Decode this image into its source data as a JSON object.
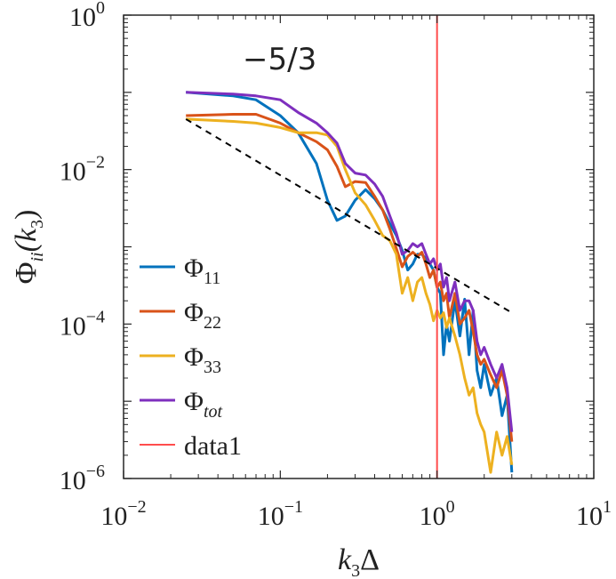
{
  "chart_data": {
    "type": "line",
    "title": "",
    "xscale": "log",
    "yscale": "log",
    "xlim": [
      0.01,
      10
    ],
    "ylim": [
      1e-06,
      1
    ],
    "xlabel": {
      "main": "k",
      "sub": "3",
      "tail": "Δ"
    },
    "ylabel": {
      "main": "Φ",
      "sub": "ii",
      "tail": "(k",
      "sub2": "3",
      "close": ")"
    },
    "x_ticks": [
      {
        "value": 0.01,
        "base": "10",
        "exp": "−2"
      },
      {
        "value": 0.1,
        "base": "10",
        "exp": "−1"
      },
      {
        "value": 1,
        "base": "10",
        "exp": "0"
      },
      {
        "value": 10,
        "base": "10",
        "exp": "1"
      }
    ],
    "y_ticks": [
      {
        "value": 1e-06,
        "base": "10",
        "exp": "−6"
      },
      {
        "value": 0.0001,
        "base": "10",
        "exp": "−4"
      },
      {
        "value": 0.01,
        "base": "10",
        "exp": "−2"
      },
      {
        "value": 1,
        "base": "10",
        "exp": "0"
      }
    ],
    "annotation": {
      "text": "−5/3"
    },
    "reference_line": {
      "name": "-5/3 slope",
      "x": [
        0.025,
        3.0
      ],
      "y": [
        0.045,
        0.00014
      ],
      "color": "#000000"
    },
    "vertical_line": {
      "name": "data1",
      "x": 1,
      "color": "#ff4d4d"
    },
    "legend": {
      "location": "lower-left"
    },
    "series": [
      {
        "name": "11",
        "legend_main": "Φ",
        "legend_sub": "11",
        "color": "#0072bd",
        "x": [
          0.025,
          0.05,
          0.07,
          0.1,
          0.13,
          0.17,
          0.2,
          0.23,
          0.26,
          0.3,
          0.35,
          0.4,
          0.45,
          0.5,
          0.55,
          0.6,
          0.65,
          0.7,
          0.75,
          0.8,
          0.85,
          0.9,
          0.95,
          1.0,
          1.05,
          1.1,
          1.15,
          1.2,
          1.3,
          1.4,
          1.5,
          1.6,
          1.7,
          1.8,
          1.9,
          2.0,
          2.2,
          2.4,
          2.6,
          2.8,
          3.0
        ],
        "y": [
          0.1,
          0.09,
          0.08,
          0.05,
          0.03,
          0.012,
          0.004,
          0.0022,
          0.0025,
          0.004,
          0.0055,
          0.0042,
          0.003,
          0.002,
          0.0014,
          0.0009,
          0.0005,
          0.0006,
          0.0008,
          0.0008,
          0.0007,
          0.0006,
          0.0005,
          0.0003,
          0.00025,
          4e-05,
          0.0001,
          6e-05,
          0.0002,
          7e-05,
          0.00021,
          4e-05,
          0.00015,
          2.5e-05,
          1.5e-05,
          3e-05,
          1.2e-05,
          2e-05,
          6.5e-06,
          1.2e-05,
          1.2e-06
        ]
      },
      {
        "name": "22",
        "legend_main": "Φ",
        "legend_sub": "22",
        "color": "#d95319",
        "x": [
          0.025,
          0.05,
          0.07,
          0.1,
          0.13,
          0.17,
          0.2,
          0.23,
          0.26,
          0.3,
          0.35,
          0.4,
          0.45,
          0.5,
          0.55,
          0.6,
          0.65,
          0.7,
          0.75,
          0.8,
          0.85,
          0.9,
          0.95,
          1.0,
          1.05,
          1.1,
          1.15,
          1.2,
          1.3,
          1.4,
          1.5,
          1.6,
          1.7,
          1.8,
          1.9,
          2.0,
          2.2,
          2.4,
          2.6,
          2.8,
          3.0
        ],
        "y": [
          0.05,
          0.052,
          0.052,
          0.04,
          0.03,
          0.023,
          0.018,
          0.011,
          0.006,
          0.007,
          0.0068,
          0.0045,
          0.003,
          0.0017,
          0.00095,
          0.00055,
          0.00075,
          0.00085,
          0.00075,
          0.00085,
          0.0006,
          0.0004,
          0.0005,
          0.0003,
          0.00035,
          0.0002,
          0.00025,
          0.00012,
          0.00025,
          0.0001,
          0.00012,
          0.00015,
          8e-05,
          4e-05,
          3e-05,
          3.5e-05,
          2.2e-05,
          1.5e-05,
          2.5e-05,
          1.2e-05,
          3e-06
        ]
      },
      {
        "name": "33",
        "legend_main": "Φ",
        "legend_sub": "33",
        "color": "#edb120",
        "x": [
          0.025,
          0.05,
          0.07,
          0.1,
          0.13,
          0.17,
          0.2,
          0.23,
          0.26,
          0.3,
          0.35,
          0.4,
          0.45,
          0.5,
          0.55,
          0.6,
          0.65,
          0.7,
          0.75,
          0.8,
          0.85,
          0.9,
          0.95,
          1.0,
          1.05,
          1.1,
          1.15,
          1.2,
          1.3,
          1.4,
          1.5,
          1.6,
          1.7,
          1.8,
          1.9,
          2.0,
          2.2,
          2.4,
          2.6,
          2.8,
          3.0
        ],
        "y": [
          0.045,
          0.042,
          0.04,
          0.035,
          0.03,
          0.03,
          0.028,
          0.02,
          0.01,
          0.005,
          0.0035,
          0.0022,
          0.0014,
          0.0012,
          0.0008,
          0.00025,
          0.0004,
          0.0002,
          0.00035,
          0.0004,
          0.00025,
          0.00018,
          0.00011,
          0.00015,
          0.00012,
          0.00014,
          9e-05,
          0.00012,
          7e-05,
          4e-05,
          2e-05,
          1.2e-05,
          1.5e-05,
          7e-06,
          5e-06,
          4e-06,
          1.2e-06,
          4e-06,
          2e-06,
          3.5e-06,
          1.5e-06
        ]
      },
      {
        "name": "tot",
        "legend_main": "Φ",
        "legend_sub": "tot",
        "color": "#7e2fbe",
        "x": [
          0.025,
          0.05,
          0.07,
          0.1,
          0.13,
          0.17,
          0.2,
          0.23,
          0.26,
          0.3,
          0.35,
          0.4,
          0.45,
          0.5,
          0.55,
          0.6,
          0.65,
          0.7,
          0.75,
          0.8,
          0.85,
          0.9,
          0.95,
          1.0,
          1.05,
          1.1,
          1.15,
          1.2,
          1.3,
          1.4,
          1.5,
          1.6,
          1.7,
          1.8,
          1.9,
          2.0,
          2.2,
          2.4,
          2.6,
          2.8,
          3.0
        ],
        "y": [
          0.1,
          0.095,
          0.09,
          0.08,
          0.055,
          0.04,
          0.03,
          0.022,
          0.012,
          0.009,
          0.0085,
          0.0065,
          0.0045,
          0.0025,
          0.0015,
          0.0008,
          0.0009,
          0.0011,
          0.001,
          0.0011,
          0.0008,
          0.0006,
          0.0007,
          0.0005,
          0.0006,
          0.0003,
          0.0004,
          0.0002,
          0.00035,
          0.00015,
          0.0002,
          0.0002,
          0.00015,
          6e-05,
          4e-05,
          5e-05,
          3e-05,
          2e-05,
          3e-05,
          1.5e-05,
          4e-06
        ]
      }
    ],
    "legend_entries": [
      {
        "series": "11",
        "main": "Φ",
        "sub": "11",
        "color": "#0072bd"
      },
      {
        "series": "22",
        "main": "Φ",
        "sub": "22",
        "color": "#d95319"
      },
      {
        "series": "33",
        "main": "Φ",
        "sub": "33",
        "color": "#edb120"
      },
      {
        "series": "tot",
        "main": "Φ",
        "sub": "tot",
        "color": "#7e2fbe",
        "italic_sub": true
      },
      {
        "series": "data1",
        "main": "data1",
        "sub": "",
        "color": "#ff4d4d"
      }
    ]
  }
}
